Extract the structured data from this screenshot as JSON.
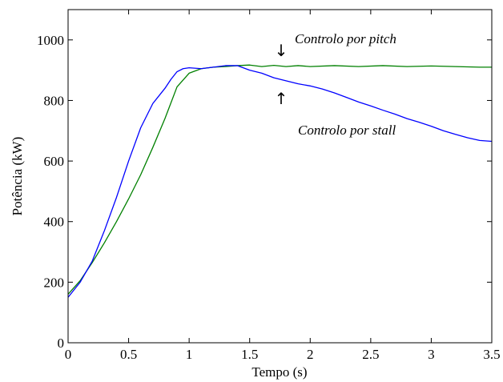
{
  "chart_data": {
    "type": "line",
    "title": "",
    "xlabel": "Tempo (s)",
    "ylabel": "Potência (kW)",
    "xlim": [
      0,
      3.5
    ],
    "ylim": [
      0,
      1100
    ],
    "grid": false,
    "x_ticks": [
      "0",
      "0.5",
      "1",
      "1.5",
      "2",
      "2.5",
      "3",
      "3.5"
    ],
    "x_tick_values": [
      0,
      0.5,
      1,
      1.5,
      2,
      2.5,
      3,
      3.5
    ],
    "y_ticks": [
      "0",
      "200",
      "400",
      "600",
      "800",
      "1000"
    ],
    "y_tick_values": [
      0,
      200,
      400,
      600,
      800,
      1000
    ],
    "series": [
      {
        "name": "Controlo por pitch",
        "color": "#008000",
        "x": [
          0,
          0.1,
          0.2,
          0.3,
          0.4,
          0.5,
          0.6,
          0.7,
          0.8,
          0.9,
          1.0,
          1.1,
          1.2,
          1.3,
          1.4,
          1.5,
          1.6,
          1.7,
          1.8,
          1.9,
          2.0,
          2.2,
          2.4,
          2.6,
          2.8,
          3.0,
          3.2,
          3.4,
          3.5
        ],
        "values": [
          160,
          205,
          265,
          330,
          400,
          475,
          555,
          645,
          740,
          845,
          890,
          905,
          910,
          912,
          915,
          917,
          912,
          916,
          912,
          915,
          912,
          915,
          912,
          915,
          912,
          914,
          912,
          910,
          910
        ]
      },
      {
        "name": "Controlo por stall",
        "color": "#0000ff",
        "x": [
          0,
          0.1,
          0.2,
          0.3,
          0.4,
          0.5,
          0.6,
          0.7,
          0.8,
          0.85,
          0.9,
          0.95,
          1.0,
          1.1,
          1.2,
          1.3,
          1.4,
          1.5,
          1.6,
          1.7,
          1.8,
          1.9,
          2.0,
          2.1,
          2.2,
          2.3,
          2.4,
          2.5,
          2.6,
          2.7,
          2.8,
          2.9,
          3.0,
          3.1,
          3.2,
          3.3,
          3.4,
          3.5
        ],
        "values": [
          150,
          200,
          270,
          370,
          480,
          600,
          710,
          790,
          840,
          870,
          895,
          905,
          908,
          905,
          910,
          915,
          915,
          900,
          890,
          875,
          865,
          855,
          848,
          838,
          825,
          810,
          795,
          782,
          768,
          755,
          740,
          728,
          715,
          700,
          688,
          677,
          668,
          665
        ]
      }
    ],
    "annotations": [
      {
        "text": "Controlo por pitch",
        "arrow": "↓"
      },
      {
        "text": "Controlo por stall",
        "arrow": "↑"
      }
    ]
  }
}
